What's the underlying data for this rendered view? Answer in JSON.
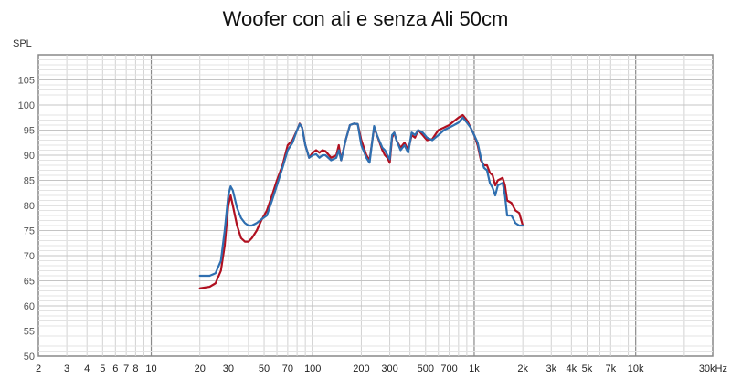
{
  "chart_data": {
    "type": "line",
    "title": "Woofer con ali e senza Ali 50cm",
    "ylabel": "SPL",
    "xlabel": "",
    "x_scale": "log",
    "xlim": [
      2,
      30000
    ],
    "ylim": [
      50,
      110
    ],
    "grid": true,
    "x_tick_values": [
      2,
      3,
      4,
      5,
      6,
      7,
      8,
      10,
      20,
      30,
      50,
      70,
      100,
      200,
      300,
      500,
      700,
      1000,
      2000,
      3000,
      4000,
      5000,
      7000,
      10000,
      30000
    ],
    "x_tick_labels": [
      "2",
      "3",
      "4",
      "5",
      "6",
      "7",
      "8",
      "10",
      "20",
      "30",
      "50",
      "70",
      "100",
      "200",
      "300",
      "500",
      "700",
      "1k",
      "2k",
      "3k",
      "4k",
      "5k",
      "7k",
      "10k",
      "30kHz"
    ],
    "y_tick_values": [
      50,
      55,
      60,
      65,
      70,
      75,
      80,
      85,
      90,
      95,
      100,
      105
    ],
    "y_tick_labels": [
      "50",
      "55",
      "60",
      "65",
      "70",
      "75",
      "80",
      "85",
      "90",
      "95",
      "100",
      "105"
    ],
    "series": [
      {
        "color": "#b01020",
        "points": [
          [
            20,
            63.5
          ],
          [
            23,
            63.8
          ],
          [
            25,
            64.5
          ],
          [
            27,
            67
          ],
          [
            28.5,
            72
          ],
          [
            30,
            80
          ],
          [
            31,
            82
          ],
          [
            32,
            80
          ],
          [
            34,
            76
          ],
          [
            36,
            73.5
          ],
          [
            38,
            72.8
          ],
          [
            40,
            72.8
          ],
          [
            42,
            73.5
          ],
          [
            45,
            75
          ],
          [
            48,
            77
          ],
          [
            52,
            79
          ],
          [
            56,
            82
          ],
          [
            60,
            85
          ],
          [
            65,
            88
          ],
          [
            70,
            92
          ],
          [
            75,
            93
          ],
          [
            80,
            95
          ],
          [
            83,
            96.3
          ],
          [
            86,
            95.5
          ],
          [
            90,
            92
          ],
          [
            95,
            89.5
          ],
          [
            100,
            90.5
          ],
          [
            105,
            91
          ],
          [
            110,
            90.5
          ],
          [
            115,
            91
          ],
          [
            120,
            90.8
          ],
          [
            130,
            89.5
          ],
          [
            140,
            90
          ],
          [
            145,
            92
          ],
          [
            150,
            89
          ],
          [
            160,
            93
          ],
          [
            170,
            96
          ],
          [
            180,
            96.3
          ],
          [
            190,
            96.2
          ],
          [
            200,
            93
          ],
          [
            215,
            90
          ],
          [
            225,
            89
          ],
          [
            240,
            95.5
          ],
          [
            250,
            94
          ],
          [
            270,
            91
          ],
          [
            280,
            90
          ],
          [
            290,
            89.5
          ],
          [
            300,
            88.5
          ],
          [
            310,
            93.5
          ],
          [
            320,
            94.5
          ],
          [
            330,
            93
          ],
          [
            350,
            91.5
          ],
          [
            370,
            92.5
          ],
          [
            390,
            91
          ],
          [
            410,
            94
          ],
          [
            430,
            93.5
          ],
          [
            450,
            95
          ],
          [
            480,
            94
          ],
          [
            510,
            93
          ],
          [
            550,
            93.2
          ],
          [
            600,
            95
          ],
          [
            650,
            95.5
          ],
          [
            700,
            96
          ],
          [
            750,
            96.8
          ],
          [
            800,
            97.5
          ],
          [
            850,
            98
          ],
          [
            900,
            97
          ],
          [
            950,
            95.5
          ],
          [
            1000,
            94
          ],
          [
            1050,
            92
          ],
          [
            1100,
            89
          ],
          [
            1150,
            88
          ],
          [
            1200,
            88
          ],
          [
            1250,
            86.5
          ],
          [
            1300,
            86
          ],
          [
            1350,
            84
          ],
          [
            1400,
            85
          ],
          [
            1500,
            85.5
          ],
          [
            1550,
            84
          ],
          [
            1600,
            81
          ],
          [
            1700,
            80.5
          ],
          [
            1800,
            79
          ],
          [
            1900,
            78.5
          ],
          [
            2000,
            76
          ]
        ]
      },
      {
        "color": "#2f6fb0",
        "points": [
          [
            20,
            66
          ],
          [
            23,
            66
          ],
          [
            25,
            66.5
          ],
          [
            27,
            69
          ],
          [
            28.5,
            75
          ],
          [
            30,
            82
          ],
          [
            31,
            83.8
          ],
          [
            32,
            83
          ],
          [
            34,
            79.5
          ],
          [
            36,
            77.5
          ],
          [
            38,
            76.5
          ],
          [
            40,
            76
          ],
          [
            42,
            76
          ],
          [
            45,
            76.5
          ],
          [
            48,
            77.2
          ],
          [
            52,
            78
          ],
          [
            56,
            81
          ],
          [
            60,
            84
          ],
          [
            65,
            87.5
          ],
          [
            70,
            91
          ],
          [
            75,
            92.5
          ],
          [
            80,
            95
          ],
          [
            83,
            96.2
          ],
          [
            86,
            95.5
          ],
          [
            90,
            92
          ],
          [
            95,
            89.5
          ],
          [
            100,
            90
          ],
          [
            105,
            90.2
          ],
          [
            110,
            89.5
          ],
          [
            115,
            90
          ],
          [
            120,
            90
          ],
          [
            130,
            89
          ],
          [
            140,
            89.5
          ],
          [
            145,
            91
          ],
          [
            150,
            89
          ],
          [
            160,
            93
          ],
          [
            170,
            96
          ],
          [
            180,
            96.3
          ],
          [
            190,
            96.2
          ],
          [
            200,
            92
          ],
          [
            215,
            89.5
          ],
          [
            225,
            88.5
          ],
          [
            240,
            95.8
          ],
          [
            250,
            94
          ],
          [
            270,
            91.5
          ],
          [
            280,
            91
          ],
          [
            290,
            90
          ],
          [
            300,
            89.2
          ],
          [
            310,
            94
          ],
          [
            320,
            94.5
          ],
          [
            330,
            93
          ],
          [
            350,
            91
          ],
          [
            370,
            92
          ],
          [
            390,
            90.5
          ],
          [
            410,
            94.5
          ],
          [
            430,
            94
          ],
          [
            450,
            95
          ],
          [
            480,
            94.5
          ],
          [
            510,
            93.5
          ],
          [
            550,
            93
          ],
          [
            600,
            94
          ],
          [
            650,
            95
          ],
          [
            700,
            95.5
          ],
          [
            750,
            96
          ],
          [
            800,
            96.5
          ],
          [
            850,
            97.5
          ],
          [
            900,
            96.5
          ],
          [
            950,
            95.5
          ],
          [
            1000,
            94
          ],
          [
            1050,
            92.5
          ],
          [
            1100,
            89.5
          ],
          [
            1150,
            87.5
          ],
          [
            1200,
            87
          ],
          [
            1250,
            84.5
          ],
          [
            1300,
            83.5
          ],
          [
            1350,
            82
          ],
          [
            1400,
            84
          ],
          [
            1500,
            84.5
          ],
          [
            1550,
            82
          ],
          [
            1600,
            78
          ],
          [
            1700,
            78
          ],
          [
            1800,
            76.5
          ],
          [
            1900,
            76
          ],
          [
            2000,
            76
          ]
        ]
      }
    ]
  }
}
